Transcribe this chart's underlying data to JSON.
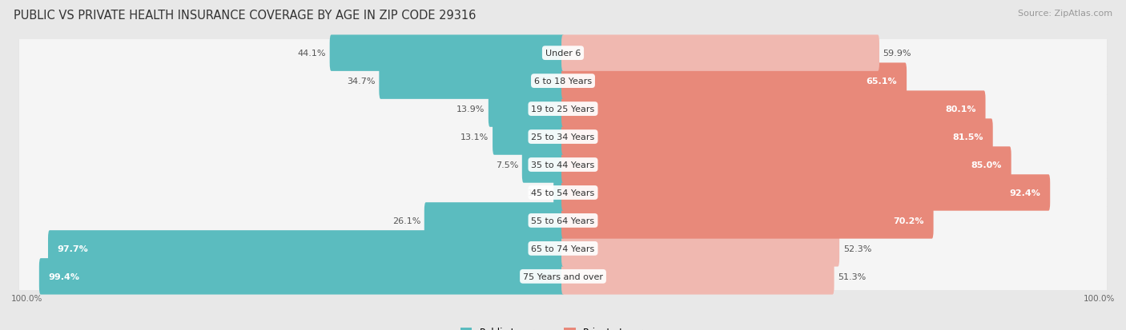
{
  "title": "PUBLIC VS PRIVATE HEALTH INSURANCE COVERAGE BY AGE IN ZIP CODE 29316",
  "source": "Source: ZipAtlas.com",
  "categories": [
    "Under 6",
    "6 to 18 Years",
    "19 to 25 Years",
    "25 to 34 Years",
    "35 to 44 Years",
    "45 to 54 Years",
    "55 to 64 Years",
    "65 to 74 Years",
    "75 Years and over"
  ],
  "public_values": [
    44.1,
    34.7,
    13.9,
    13.1,
    7.5,
    1.5,
    26.1,
    97.7,
    99.4
  ],
  "private_values": [
    59.9,
    65.1,
    80.1,
    81.5,
    85.0,
    92.4,
    70.2,
    52.3,
    51.3
  ],
  "public_color": "#5bbcbf",
  "private_color_strong": "#e8897a",
  "private_color_weak": "#f0b8b0",
  "private_threshold": 60,
  "bg_color": "#e8e8e8",
  "row_bg_color": "#f5f5f5",
  "row_border_color": "#d0d0d0",
  "title_fontsize": 10.5,
  "label_fontsize": 8,
  "bar_label_fontsize": 8,
  "legend_fontsize": 8.5,
  "source_fontsize": 8
}
